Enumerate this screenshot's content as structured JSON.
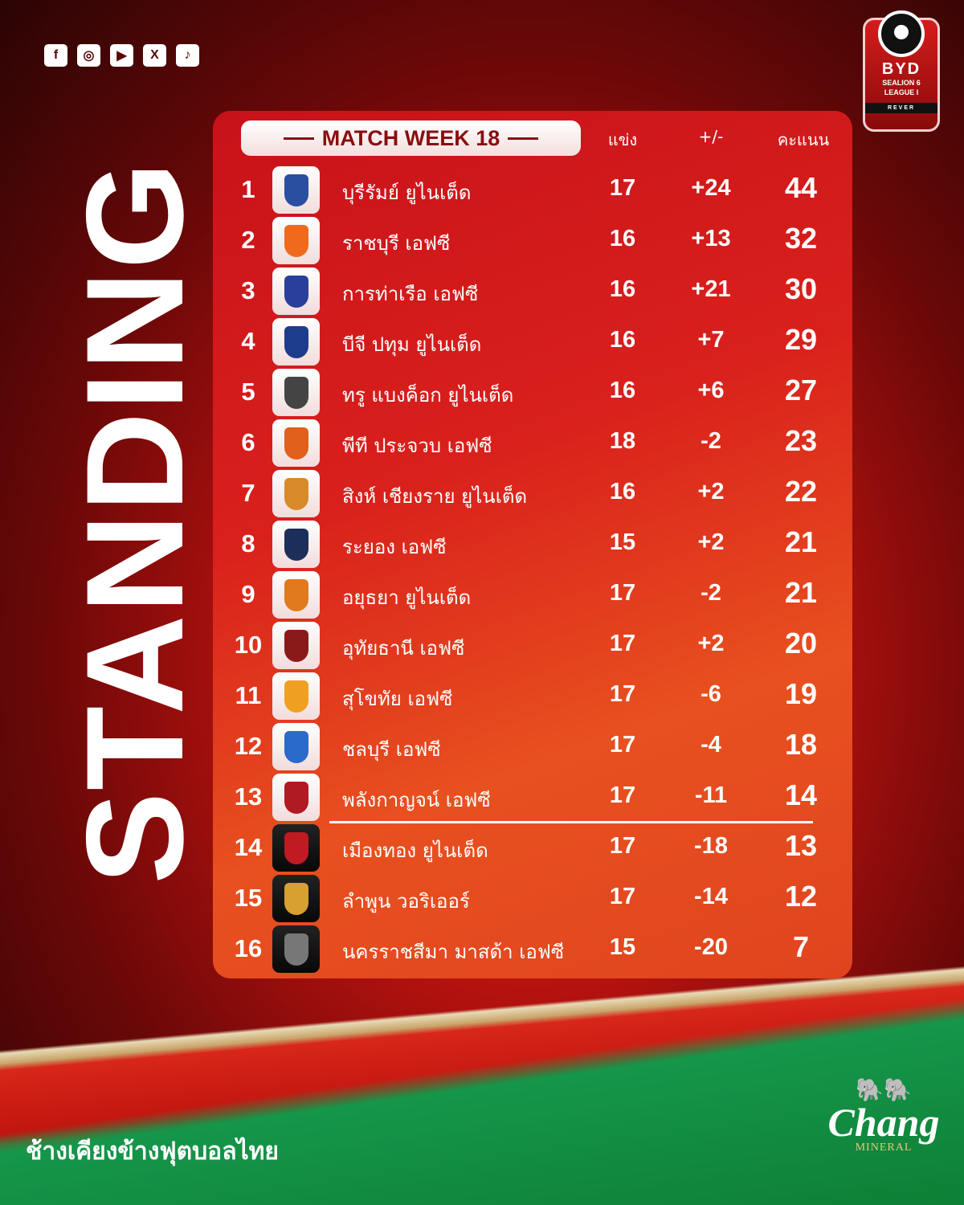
{
  "social_icons": [
    "facebook-icon",
    "instagram-icon",
    "youtube-icon",
    "x-icon",
    "tiktok-icon"
  ],
  "title": "STANDING",
  "league_logo": {
    "brand": "BYD",
    "line2": "SEALION 6",
    "line3": "LEAGUE I",
    "line4": "REVER"
  },
  "table": {
    "week_label": "MATCH WEEK 18",
    "headers": {
      "played": "แข่ง",
      "goal_diff": "+/-",
      "points": "คะแนน"
    },
    "rows": [
      {
        "pos": "1",
        "team": "บุรีรัมย์ ยูไนเต็ด",
        "played": "17",
        "gd": "+24",
        "pts": "44",
        "color": "#2a4fa0",
        "dark": false
      },
      {
        "pos": "2",
        "team": "ราชบุรี เอฟซี",
        "played": "16",
        "gd": "+13",
        "pts": "32",
        "color": "#f06a1e",
        "dark": false
      },
      {
        "pos": "3",
        "team": "การท่าเรือ เอฟซี",
        "played": "16",
        "gd": "+21",
        "pts": "30",
        "color": "#2a3f9a",
        "dark": false
      },
      {
        "pos": "4",
        "team": "บีจี ปทุม ยูไนเต็ด",
        "played": "16",
        "gd": "+7",
        "pts": "29",
        "color": "#1e3c8c",
        "dark": false
      },
      {
        "pos": "5",
        "team": "ทรู แบงค็อก ยูไนเต็ด",
        "played": "16",
        "gd": "+6",
        "pts": "27",
        "color": "#444444",
        "dark": false
      },
      {
        "pos": "6",
        "team": "พีที ประจวบ เอฟซี",
        "played": "18",
        "gd": "-2",
        "pts": "23",
        "color": "#e0601c",
        "dark": false
      },
      {
        "pos": "7",
        "team": "สิงห์ เชียงราย ยูไนเต็ด",
        "played": "16",
        "gd": "+2",
        "pts": "22",
        "color": "#d88a2a",
        "dark": false
      },
      {
        "pos": "8",
        "team": "ระยอง เอฟซี",
        "played": "15",
        "gd": "+2",
        "pts": "21",
        "color": "#1e2e5a",
        "dark": false
      },
      {
        "pos": "9",
        "team": "อยุธยา ยูไนเต็ด",
        "played": "17",
        "gd": "-2",
        "pts": "21",
        "color": "#e07a1e",
        "dark": false
      },
      {
        "pos": "10",
        "team": "อุทัยธานี เอฟซี",
        "played": "17",
        "gd": "+2",
        "pts": "20",
        "color": "#8a1a1a",
        "dark": false
      },
      {
        "pos": "11",
        "team": "สุโขทัย เอฟซี",
        "played": "17",
        "gd": "-6",
        "pts": "19",
        "color": "#f0a020",
        "dark": false
      },
      {
        "pos": "12",
        "team": "ชลบุรี เอฟซี",
        "played": "17",
        "gd": "-4",
        "pts": "18",
        "color": "#2a6ac8",
        "dark": false
      },
      {
        "pos": "13",
        "team": "พลังกาญจน์ เอฟซี",
        "played": "17",
        "gd": "-11",
        "pts": "14",
        "color": "#b01a22",
        "dark": false
      },
      {
        "pos": "14",
        "team": "เมืองทอง ยูไนเต็ด",
        "played": "17",
        "gd": "-18",
        "pts": "13",
        "color": "#c01a22",
        "dark": true
      },
      {
        "pos": "15",
        "team": "ลำพูน วอริเออร์",
        "played": "17",
        "gd": "-14",
        "pts": "12",
        "color": "#d8a030",
        "dark": true
      },
      {
        "pos": "16",
        "team": "นครราชสีมา มาสด้า เอฟซี",
        "played": "15",
        "gd": "-20",
        "pts": "7",
        "color": "#777777",
        "dark": true
      }
    ]
  },
  "footer": {
    "slogan": "ช้างเคียงข้างฟุตบอลไทย",
    "sponsor": "Chang",
    "sponsor_sub": "MINERAL"
  }
}
